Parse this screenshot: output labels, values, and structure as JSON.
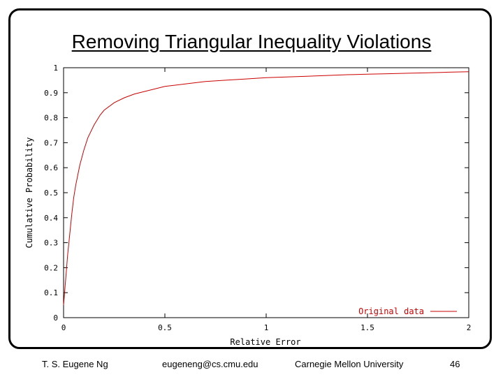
{
  "slide": {
    "title": "Removing Triangular Inequality Violations",
    "footer": {
      "author": "T. S. Eugene Ng",
      "email": "eugeneng@cs.cmu.edu",
      "university": "Carnegie Mellon University",
      "page": "46"
    }
  },
  "chart_data": {
    "type": "line",
    "title": "",
    "xlabel": "Relative Error",
    "ylabel": "Cumulative Probability",
    "xlim": [
      0,
      2
    ],
    "ylim": [
      0,
      1
    ],
    "x_ticks": [
      0,
      0.5,
      1,
      1.5,
      2
    ],
    "x_tick_labels": [
      "0",
      "0.5",
      "1",
      "1.5",
      "2"
    ],
    "y_ticks": [
      0,
      0.1,
      0.2,
      0.3,
      0.4,
      0.5,
      0.6,
      0.7,
      0.8,
      0.9,
      1
    ],
    "y_tick_labels": [
      "0",
      "0.1",
      "0.2",
      "0.3",
      "0.4",
      "0.5",
      "0.6",
      "0.7",
      "0.8",
      "0.9",
      "1"
    ],
    "grid": false,
    "legend_position": "bottom-right",
    "series_color": "#cc0000",
    "series": [
      {
        "name": "Original data",
        "x": [
          0,
          0.01,
          0.02,
          0.03,
          0.04,
          0.05,
          0.06,
          0.08,
          0.1,
          0.12,
          0.15,
          0.18,
          0.2,
          0.25,
          0.3,
          0.35,
          0.4,
          0.5,
          0.6,
          0.7,
          0.8,
          0.9,
          1.0,
          1.1,
          1.2,
          1.3,
          1.4,
          1.5,
          1.6,
          1.7,
          1.8,
          1.9,
          2.0
        ],
        "y": [
          0.05,
          0.15,
          0.25,
          0.33,
          0.41,
          0.48,
          0.53,
          0.61,
          0.67,
          0.72,
          0.77,
          0.81,
          0.83,
          0.86,
          0.88,
          0.895,
          0.905,
          0.925,
          0.935,
          0.945,
          0.95,
          0.955,
          0.96,
          0.963,
          0.966,
          0.969,
          0.972,
          0.974,
          0.976,
          0.978,
          0.98,
          0.982,
          0.984
        ]
      }
    ]
  }
}
